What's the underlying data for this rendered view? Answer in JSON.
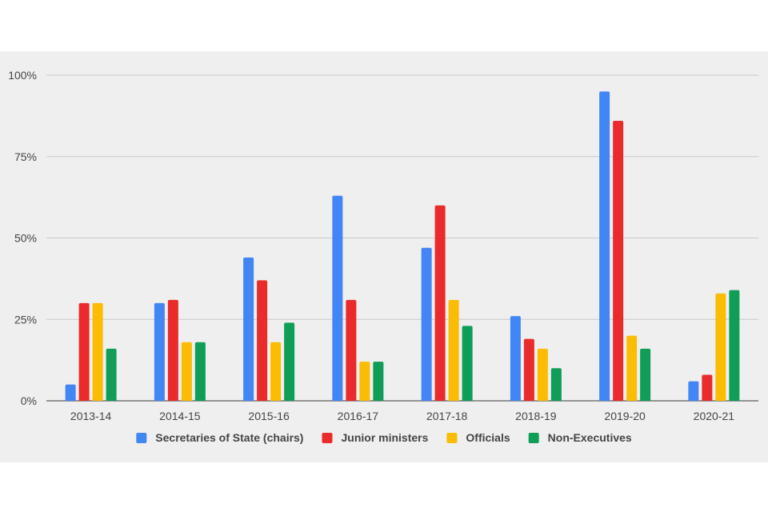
{
  "chart_data": {
    "type": "bar",
    "categories": [
      "2013-14",
      "2014-15",
      "2015-16",
      "2016-17",
      "2017-18",
      "2018-19",
      "2019-20",
      "2020-21"
    ],
    "series": [
      {
        "name": "Secretaries of State (chairs)",
        "color": "#4285f4",
        "values": [
          5,
          30,
          44,
          63,
          47,
          26,
          95,
          6
        ]
      },
      {
        "name": "Junior ministers",
        "color": "#ea2b2b",
        "values": [
          30,
          31,
          37,
          31,
          60,
          19,
          86,
          8
        ]
      },
      {
        "name": "Officials",
        "color": "#fbbc04",
        "values": [
          30,
          18,
          18,
          12,
          31,
          16,
          20,
          33
        ]
      },
      {
        "name": "Non-Executives",
        "color": "#0f9d58",
        "values": [
          16,
          18,
          24,
          12,
          23,
          10,
          16,
          34
        ]
      }
    ],
    "y_ticks": [
      "0%",
      "25%",
      "50%",
      "75%",
      "100%"
    ],
    "ylim": [
      0,
      100
    ],
    "grid": true,
    "legend_position": "bottom",
    "title": "",
    "xlabel": "",
    "ylabel": ""
  }
}
